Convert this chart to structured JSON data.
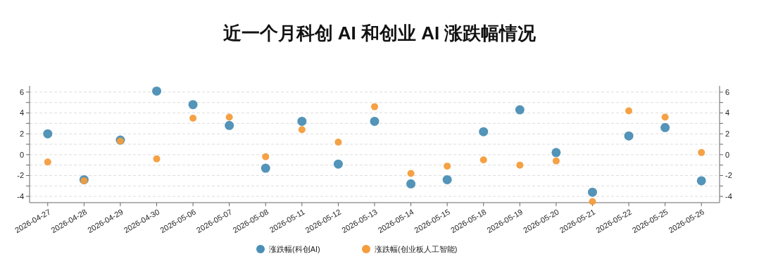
{
  "chart_data": {
    "type": "scatter",
    "title": "近一个月科创 AI 和创业 AI 涨跌幅情况",
    "categories": [
      "2026-04-27",
      "2026-04-28",
      "2026-04-29",
      "2026-04-30",
      "2026-05-06",
      "2026-05-07",
      "2026-05-08",
      "2026-05-11",
      "2026-05-12",
      "2026-05-13",
      "2026-05-14",
      "2026-05-15",
      "2026-05-18",
      "2026-05-19",
      "2026-05-20",
      "2026-05-21",
      "2026-05-22",
      "2026-05-25",
      "2026-05-26"
    ],
    "series": [
      {
        "name": "涨跌幅(科创AI)",
        "color": "#4a8fb5",
        "values": [
          2.0,
          -2.4,
          1.4,
          6.1,
          4.8,
          2.8,
          -1.3,
          3.2,
          -0.9,
          3.2,
          -2.8,
          -2.4,
          2.2,
          4.3,
          0.2,
          -3.6,
          1.8,
          2.6,
          -2.5
        ]
      },
      {
        "name": "涨跌幅(创业板人工智能)",
        "color": "#f59c3c",
        "values": [
          -0.7,
          -2.5,
          1.3,
          -0.4,
          3.5,
          3.6,
          -0.2,
          2.4,
          1.2,
          4.6,
          -1.8,
          -1.1,
          -0.5,
          -1.0,
          -0.6,
          -4.5,
          4.2,
          3.6,
          0.2
        ]
      }
    ],
    "ylim": [
      -4.6,
      6.6
    ],
    "yticks": [
      -4,
      {
        "value": -3,
        "label": null
      },
      -2,
      {
        "value": -1,
        "label": null
      },
      0,
      {
        "value": 1,
        "label": null
      },
      2,
      {
        "value": 3,
        "label": null
      },
      4,
      {
        "value": 5,
        "label": null
      },
      6
    ],
    "y2lim": [
      -4.6,
      6.6
    ],
    "y2ticks": [
      -4,
      {
        "value": -3,
        "label": null
      },
      -2,
      {
        "value": -1,
        "label": null
      },
      0,
      {
        "value": 1,
        "label": null
      },
      2,
      {
        "value": 3,
        "label": null
      },
      4,
      {
        "value": 5,
        "label": null
      },
      6
    ],
    "grid": "y",
    "legend": "bottom",
    "marker": "circle"
  }
}
